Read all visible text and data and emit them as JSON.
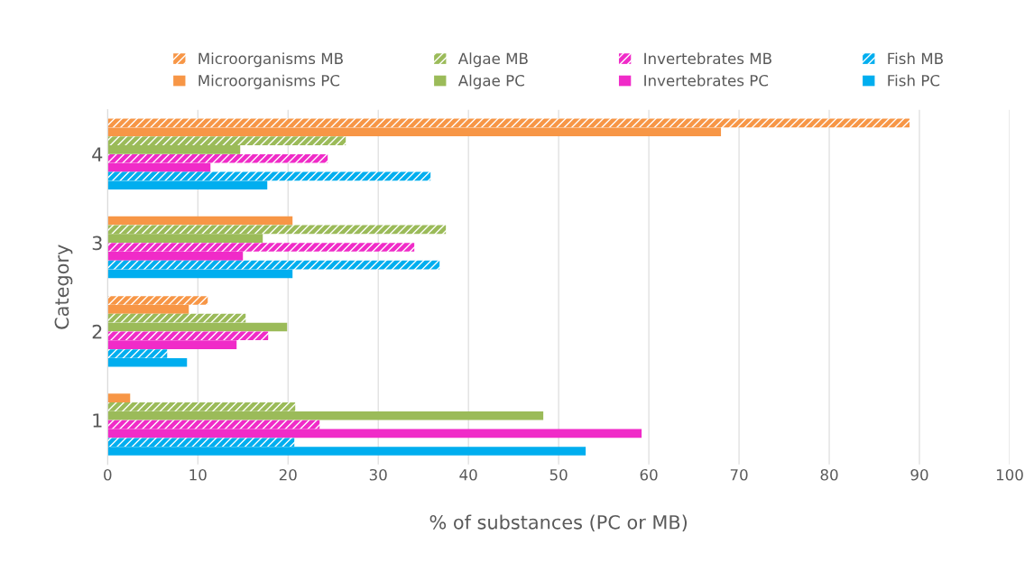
{
  "chart_data": {
    "type": "bar",
    "orientation": "horizontal",
    "xlabel": "% of substances (PC or MB)",
    "ylabel": "Category",
    "categories": [
      "4",
      "3",
      "2",
      "1"
    ],
    "series": [
      {
        "name": "Microorganisms MB",
        "color": "#f79646",
        "values": [
          88.9,
          null,
          11.1,
          null
        ]
      },
      {
        "name": "Microorganisms PC",
        "color": "#f79646",
        "values": [
          68,
          20.5,
          9,
          2.5
        ]
      },
      {
        "name": "Algae MB",
        "color": "#9bbb59",
        "values": [
          26.4,
          37.5,
          15.3,
          20.8
        ]
      },
      {
        "name": "Algae PC",
        "color": "#9bbb59",
        "values": [
          14.7,
          17.2,
          19.9,
          48.3
        ]
      },
      {
        "name": "Invertebrates MB",
        "color": "#f02bc8",
        "values": [
          24.4,
          34,
          17.8,
          23.5
        ]
      },
      {
        "name": "Invertebrates PC",
        "color": "#f02bc8",
        "values": [
          11.4,
          15,
          14.3,
          59.2
        ]
      },
      {
        "name": "Fish MB",
        "color": "#00aeef",
        "values": [
          35.8,
          36.8,
          6.6,
          20.7
        ]
      },
      {
        "name": "Fish PC",
        "color": "#00aeef",
        "values": [
          17.7,
          20.5,
          8.8,
          53
        ]
      }
    ],
    "xlim": [
      0,
      100
    ],
    "xticks": [
      0,
      10,
      20,
      30,
      40,
      50,
      60,
      70,
      80,
      90,
      100
    ],
    "grid": "x",
    "legend": "top"
  }
}
